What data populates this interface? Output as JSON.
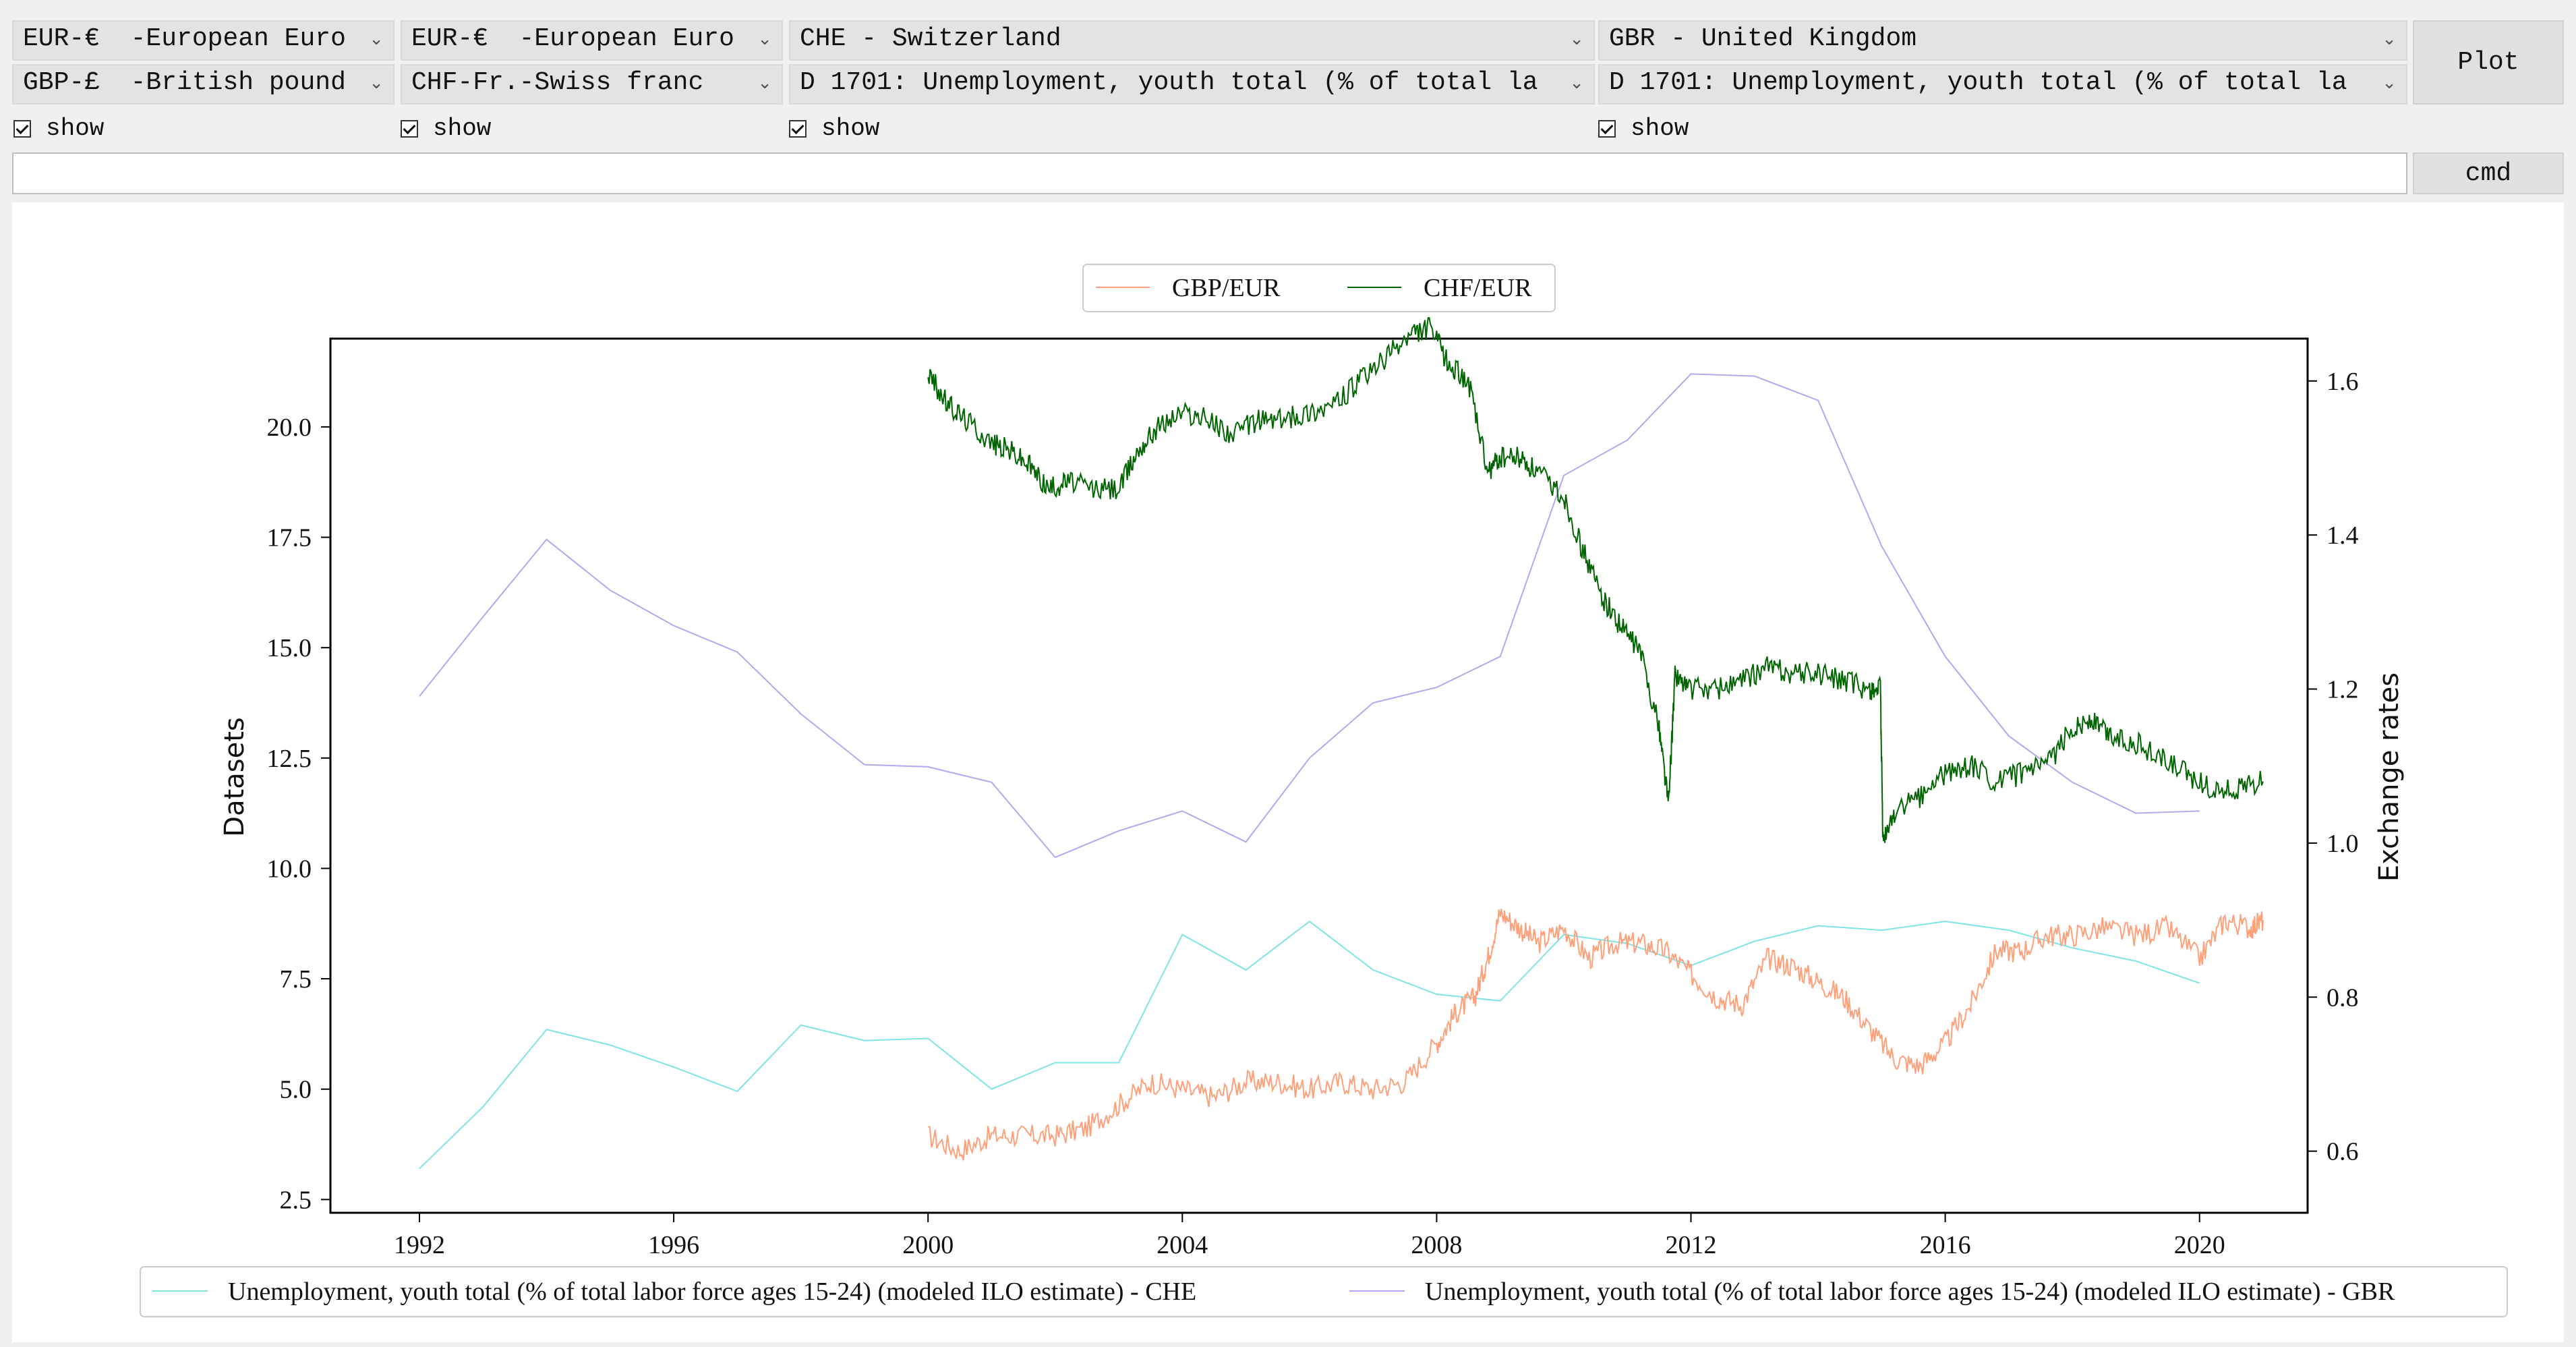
{
  "controls": {
    "row1": [
      {
        "text": "EUR-€  -European Euro"
      },
      {
        "text": "EUR-€  -European Euro"
      },
      {
        "text": "CHE - Switzerland"
      },
      {
        "text": "GBR - United Kingdom"
      }
    ],
    "row2": [
      {
        "text": "GBP-£  -British pound"
      },
      {
        "text": "CHF-Fr.-Swiss franc"
      },
      {
        "text": "D 1701: Unemployment, youth total (% of total la"
      },
      {
        "text": "D 1701: Unemployment, youth total (% of total la"
      }
    ],
    "show_label": "show",
    "plot_button": "Plot",
    "cmd_button": "cmd",
    "cmd_value": ""
  },
  "colors": {
    "gbp": "#ffa07a",
    "chf": "#006400",
    "che": "#7fe4e4",
    "gbr": "#b0a8f0"
  },
  "chart_data": {
    "type": "line",
    "ylabel_left": "Datasets",
    "ylabel_right": "Exchange rates",
    "x_ticks": [
      "1992",
      "1996",
      "2000",
      "2004",
      "2008",
      "2012",
      "2016",
      "2020"
    ],
    "x_range": [
      1990.6,
      2021.7
    ],
    "y_left_ticks": [
      "2.5",
      "5.0",
      "7.5",
      "10.0",
      "12.5",
      "15.0",
      "17.5",
      "20.0"
    ],
    "y_left_range": [
      2.2,
      22.0
    ],
    "y_right_ticks": [
      "0.6",
      "0.8",
      "1.0",
      "1.2",
      "1.4",
      "1.6"
    ],
    "y_right_range": [
      0.52,
      1.655
    ],
    "legend_top": [
      {
        "name": "GBP/EUR"
      },
      {
        "name": "CHF/EUR"
      }
    ],
    "legend_bottom": [
      {
        "name": "Unemployment, youth total (% of total labor force ages 15-24) (modeled ILO estimate) - CHE"
      },
      {
        "name": "Unemployment, youth total (% of total labor force ages 15-24) (modeled ILO estimate) - GBR"
      }
    ],
    "series_left": [
      {
        "name": "Unemployment, youth total (% of total labor force ages 15-24) (modeled ILO estimate) - CHE",
        "x": [
          1992,
          1993,
          1994,
          1995,
          1996,
          1997,
          1998,
          1999,
          2000,
          2001,
          2002,
          2003,
          2004,
          2005,
          2006,
          2007,
          2008,
          2009,
          2010,
          2011,
          2012,
          2013,
          2014,
          2015,
          2016,
          2017,
          2018,
          2019,
          2020
        ],
        "y": [
          3.2,
          4.6,
          6.35,
          6.0,
          5.5,
          4.95,
          6.45,
          6.1,
          6.15,
          5.0,
          5.6,
          5.6,
          8.5,
          7.7,
          8.8,
          7.7,
          7.15,
          7.0,
          8.5,
          8.3,
          7.8,
          8.35,
          8.7,
          8.6,
          8.8,
          8.6,
          8.2,
          7.9,
          7.4
        ]
      },
      {
        "name": "Unemployment, youth total (% of total labor force ages 15-24) (modeled ILO estimate) - GBR",
        "x": [
          1992,
          1993,
          1994,
          1995,
          1996,
          1997,
          1998,
          1999,
          2000,
          2001,
          2002,
          2003,
          2004,
          2005,
          2006,
          2007,
          2008,
          2009,
          2010,
          2011,
          2012,
          2013,
          2014,
          2015,
          2016,
          2017,
          2018,
          2019,
          2020
        ],
        "y": [
          13.9,
          15.7,
          17.45,
          16.3,
          15.5,
          14.9,
          13.5,
          12.35,
          12.3,
          11.95,
          10.25,
          10.85,
          11.3,
          10.6,
          12.5,
          13.75,
          14.1,
          14.8,
          18.9,
          19.7,
          21.2,
          21.15,
          20.6,
          17.3,
          14.8,
          13.0,
          11.95,
          11.25,
          11.3
        ]
      }
    ],
    "series_right": [
      {
        "name": "GBP/EUR",
        "x": [
          2000.0,
          2000.5,
          2001.0,
          2001.5,
          2002.0,
          2002.5,
          2003.0,
          2003.5,
          2004.0,
          2004.5,
          2005.0,
          2005.5,
          2006.0,
          2006.5,
          2007.0,
          2007.5,
          2008.0,
          2008.3,
          2008.6,
          2008.8,
          2009.0,
          2009.3,
          2009.6,
          2010.0,
          2010.4,
          2010.8,
          2011.2,
          2011.6,
          2012.0,
          2012.4,
          2012.8,
          2013.2,
          2013.6,
          2014.0,
          2014.4,
          2014.8,
          2015.2,
          2015.6,
          2016.0,
          2016.4,
          2016.8,
          2017.2,
          2017.6,
          2018.0,
          2018.5,
          2019.0,
          2019.5,
          2020.0,
          2020.4,
          2020.8,
          2021.0
        ],
        "y": [
          0.62,
          0.6,
          0.62,
          0.62,
          0.62,
          0.63,
          0.66,
          0.69,
          0.68,
          0.67,
          0.69,
          0.69,
          0.68,
          0.69,
          0.68,
          0.69,
          0.74,
          0.78,
          0.8,
          0.85,
          0.91,
          0.89,
          0.87,
          0.89,
          0.85,
          0.87,
          0.87,
          0.86,
          0.83,
          0.8,
          0.79,
          0.85,
          0.84,
          0.82,
          0.8,
          0.76,
          0.72,
          0.71,
          0.74,
          0.79,
          0.86,
          0.86,
          0.88,
          0.88,
          0.89,
          0.88,
          0.89,
          0.85,
          0.9,
          0.89,
          0.9
        ]
      },
      {
        "name": "CHF/EUR",
        "x": [
          2000.0,
          2000.3,
          2000.6,
          2001.0,
          2001.3,
          2001.6,
          2001.9,
          2002.2,
          2002.6,
          2003.0,
          2003.3,
          2003.6,
          2004.0,
          2004.4,
          2004.8,
          2005.2,
          2005.6,
          2006.0,
          2006.4,
          2006.8,
          2007.2,
          2007.6,
          2007.9,
          2008.2,
          2008.5,
          2008.8,
          2009.0,
          2009.3,
          2009.6,
          2010.0,
          2010.3,
          2010.6,
          2010.9,
          2011.2,
          2011.5,
          2011.65,
          2011.75,
          2012.0,
          2012.4,
          2012.8,
          2013.2,
          2013.6,
          2014.0,
          2014.4,
          2014.8,
          2014.98,
          2015.02,
          2015.2,
          2015.6,
          2016.0,
          2016.4,
          2016.8,
          2017.2,
          2017.6,
          2018.0,
          2018.3,
          2018.6,
          2019.0,
          2019.4,
          2019.8,
          2020.2,
          2020.6,
          2021.0
        ],
        "y": [
          1.61,
          1.57,
          1.55,
          1.52,
          1.51,
          1.49,
          1.46,
          1.47,
          1.46,
          1.46,
          1.51,
          1.54,
          1.56,
          1.55,
          1.53,
          1.55,
          1.55,
          1.56,
          1.57,
          1.6,
          1.63,
          1.66,
          1.67,
          1.62,
          1.6,
          1.48,
          1.5,
          1.5,
          1.48,
          1.45,
          1.38,
          1.32,
          1.28,
          1.25,
          1.15,
          1.05,
          1.22,
          1.2,
          1.2,
          1.21,
          1.23,
          1.22,
          1.22,
          1.21,
          1.2,
          1.2,
          1.0,
          1.04,
          1.06,
          1.09,
          1.1,
          1.08,
          1.09,
          1.1,
          1.15,
          1.16,
          1.14,
          1.13,
          1.11,
          1.09,
          1.07,
          1.07,
          1.08
        ]
      }
    ]
  }
}
